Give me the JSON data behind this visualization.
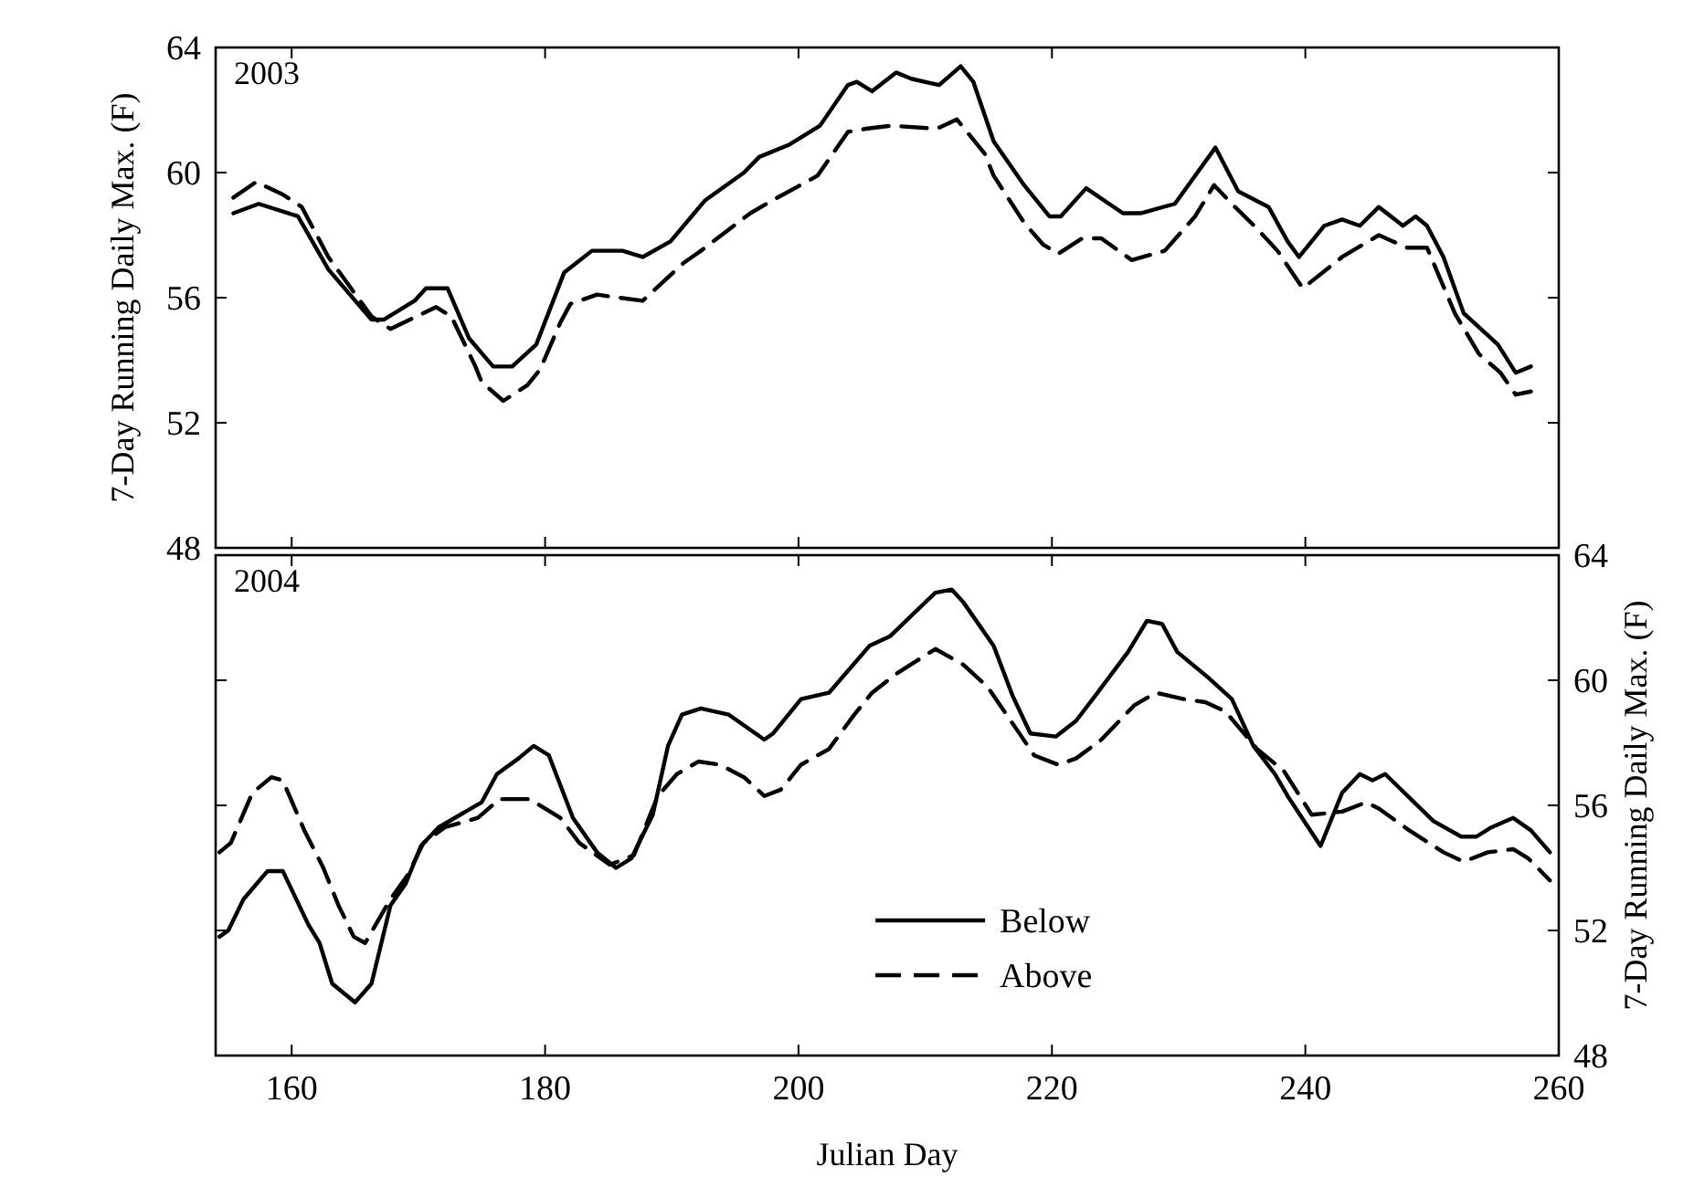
{
  "chart_data": [
    {
      "type": "line",
      "annotations": [
        "2003"
      ],
      "ylabel": "7-Day Running Daily Max. (F)",
      "xlim": [
        154,
        260
      ],
      "xticks": [
        160,
        180,
        200,
        220,
        240,
        260
      ],
      "ylim": [
        48,
        64
      ],
      "yticks": [
        48,
        52,
        56,
        60,
        64
      ],
      "tick_labels": "y",
      "series": [
        {
          "color": "#000000",
          "line_style": "solid",
          "x": [
            155.4,
            157.4,
            160.5,
            162.9,
            166.3,
            167.3,
            169.7,
            170.6,
            172.3,
            174.0,
            175.9,
            177.4,
            179.3,
            181.5,
            183.7,
            186.1,
            187.7,
            189.9,
            192.6,
            195.7,
            196.9,
            199.3,
            201.7,
            203.9,
            204.6,
            205.8,
            207.7,
            208.9,
            211.1,
            212.8,
            213.8,
            215.4,
            217.8,
            219.8,
            220.7,
            222.7,
            225.6,
            227.0,
            229.7,
            231.3,
            232.9,
            234.7,
            237.1,
            238.6,
            239.5,
            241.5,
            242.9,
            244.3,
            245.8,
            247.7,
            248.7,
            249.6,
            250.9,
            252.5,
            255.2,
            256.6,
            257.8
          ],
          "values": [
            58.7,
            59.0,
            58.6,
            56.9,
            55.3,
            55.3,
            55.9,
            56.3,
            56.3,
            54.7,
            53.8,
            53.8,
            54.5,
            56.8,
            57.5,
            57.5,
            57.3,
            57.8,
            59.1,
            60.0,
            60.5,
            60.9,
            61.5,
            62.8,
            62.9,
            62.6,
            63.2,
            63.0,
            62.8,
            63.4,
            62.9,
            61.0,
            59.6,
            58.6,
            58.6,
            59.5,
            58.7,
            58.7,
            59.0,
            59.9,
            60.8,
            59.4,
            58.9,
            57.8,
            57.3,
            58.3,
            58.5,
            58.3,
            58.9,
            58.3,
            58.6,
            58.3,
            57.3,
            55.5,
            54.5,
            53.6,
            53.8
          ]
        },
        {
          "color": "#000000",
          "line_style": "dashed",
          "x": [
            155.4,
            157.2,
            159.3,
            160.8,
            162.9,
            166.3,
            167.8,
            171.4,
            172.6,
            174.5,
            175.0,
            176.7,
            178.6,
            179.6,
            181.2,
            182.0,
            184.1,
            185.8,
            187.7,
            190.9,
            192.3,
            196.2,
            197.9,
            201.5,
            203.9,
            205.3,
            207.3,
            210.9,
            212.5,
            214.7,
            215.4,
            217.8,
            219.3,
            220.5,
            222.4,
            223.9,
            226.3,
            228.9,
            231.3,
            232.8,
            234.2,
            236.2,
            237.8,
            239.8,
            242.9,
            245.8,
            248.0,
            249.6,
            251.8,
            253.7,
            255.4,
            256.6,
            257.8
          ],
          "values": [
            59.2,
            59.7,
            59.3,
            58.9,
            57.3,
            55.4,
            55.0,
            55.7,
            55.4,
            53.8,
            53.3,
            52.7,
            53.2,
            53.7,
            55.2,
            55.8,
            56.1,
            56.0,
            55.9,
            57.1,
            57.5,
            58.7,
            59.1,
            59.9,
            61.3,
            61.4,
            61.5,
            61.4,
            61.7,
            60.6,
            59.9,
            58.4,
            57.7,
            57.4,
            57.9,
            57.9,
            57.2,
            57.5,
            58.6,
            59.6,
            59.0,
            58.2,
            57.5,
            56.3,
            57.3,
            58.0,
            57.6,
            57.6,
            55.5,
            54.2,
            53.6,
            52.9,
            53.0
          ]
        }
      ]
    },
    {
      "type": "line",
      "annotations": [
        "2004"
      ],
      "xlabel": "Julian Day",
      "y2label": "7-Day Running Daily Max. (F)",
      "xlim": [
        154,
        260
      ],
      "xticks": [
        160,
        180,
        200,
        220,
        240,
        260
      ],
      "y2lim": [
        48,
        64
      ],
      "y2ticks": [
        48,
        52,
        56,
        60,
        64
      ],
      "legend": "bottom",
      "series": [
        {
          "name": "Below",
          "color": "#000000",
          "line_style": "solid",
          "axis": "y2",
          "x": [
            154.3,
            155.0,
            156.2,
            158.1,
            159.3,
            161.3,
            162.2,
            163.2,
            165.0,
            166.3,
            167.8,
            169.0,
            170.2,
            171.6,
            175.0,
            176.2,
            177.9,
            179.1,
            180.3,
            182.2,
            184.1,
            185.6,
            186.8,
            188.5,
            189.7,
            190.8,
            192.3,
            194.5,
            197.3,
            198.0,
            200.2,
            202.4,
            205.6,
            207.2,
            210.8,
            212.1,
            213.0,
            215.4,
            216.9,
            218.3,
            220.3,
            221.9,
            223.6,
            226.0,
            227.5,
            228.7,
            229.9,
            232.3,
            234.2,
            235.9,
            237.6,
            238.6,
            241.2,
            242.9,
            244.3,
            245.3,
            246.3,
            250.1,
            252.3,
            253.5,
            254.7,
            256.4,
            257.8,
            259.3
          ],
          "values": [
            51.8,
            52.0,
            53.0,
            53.9,
            53.9,
            52.2,
            51.6,
            50.3,
            49.7,
            50.3,
            52.8,
            53.5,
            54.7,
            55.3,
            56.1,
            57.0,
            57.5,
            57.9,
            57.6,
            55.6,
            54.5,
            54.0,
            54.3,
            55.7,
            57.9,
            58.9,
            59.1,
            58.9,
            58.1,
            58.3,
            59.4,
            59.6,
            61.1,
            61.4,
            62.8,
            62.9,
            62.5,
            61.1,
            59.5,
            58.3,
            58.2,
            58.7,
            59.6,
            60.9,
            61.9,
            61.8,
            60.9,
            60.1,
            59.4,
            57.9,
            57.0,
            56.3,
            54.7,
            56.4,
            57.0,
            56.8,
            57.0,
            55.5,
            55.0,
            55.0,
            55.3,
            55.6,
            55.2,
            54.5
          ]
        },
        {
          "name": "Above",
          "color": "#000000",
          "line_style": "dashed",
          "axis": "y2",
          "x": [
            154.3,
            155.2,
            156.9,
            158.4,
            159.3,
            161.0,
            162.5,
            163.7,
            164.9,
            165.8,
            167.8,
            169.2,
            170.4,
            172.1,
            174.7,
            176.4,
            178.8,
            181.2,
            182.7,
            185.1,
            187.0,
            188.9,
            190.4,
            192.1,
            193.8,
            195.7,
            197.3,
            198.6,
            200.2,
            202.4,
            204.4,
            205.8,
            207.7,
            210.8,
            213.0,
            214.9,
            217.1,
            218.6,
            220.5,
            221.9,
            223.9,
            226.5,
            228.2,
            230.4,
            232.1,
            233.7,
            236.2,
            238.3,
            240.5,
            242.9,
            244.8,
            245.8,
            248.2,
            250.9,
            252.5,
            254.4,
            256.4,
            257.6,
            259.3
          ],
          "values": [
            54.5,
            54.8,
            56.4,
            56.9,
            56.8,
            55.2,
            54.0,
            52.8,
            51.8,
            51.6,
            53.0,
            53.8,
            54.8,
            55.3,
            55.6,
            56.2,
            56.2,
            55.6,
            54.8,
            54.1,
            54.4,
            56.3,
            57.0,
            57.4,
            57.3,
            56.9,
            56.3,
            56.5,
            57.3,
            57.8,
            58.9,
            59.6,
            60.2,
            61.0,
            60.5,
            59.8,
            58.5,
            57.6,
            57.3,
            57.5,
            58.1,
            59.2,
            59.6,
            59.4,
            59.3,
            59.0,
            57.8,
            57.1,
            55.7,
            55.8,
            56.1,
            55.9,
            55.2,
            54.5,
            54.2,
            54.5,
            54.6,
            54.3,
            53.6
          ]
        }
      ]
    }
  ]
}
